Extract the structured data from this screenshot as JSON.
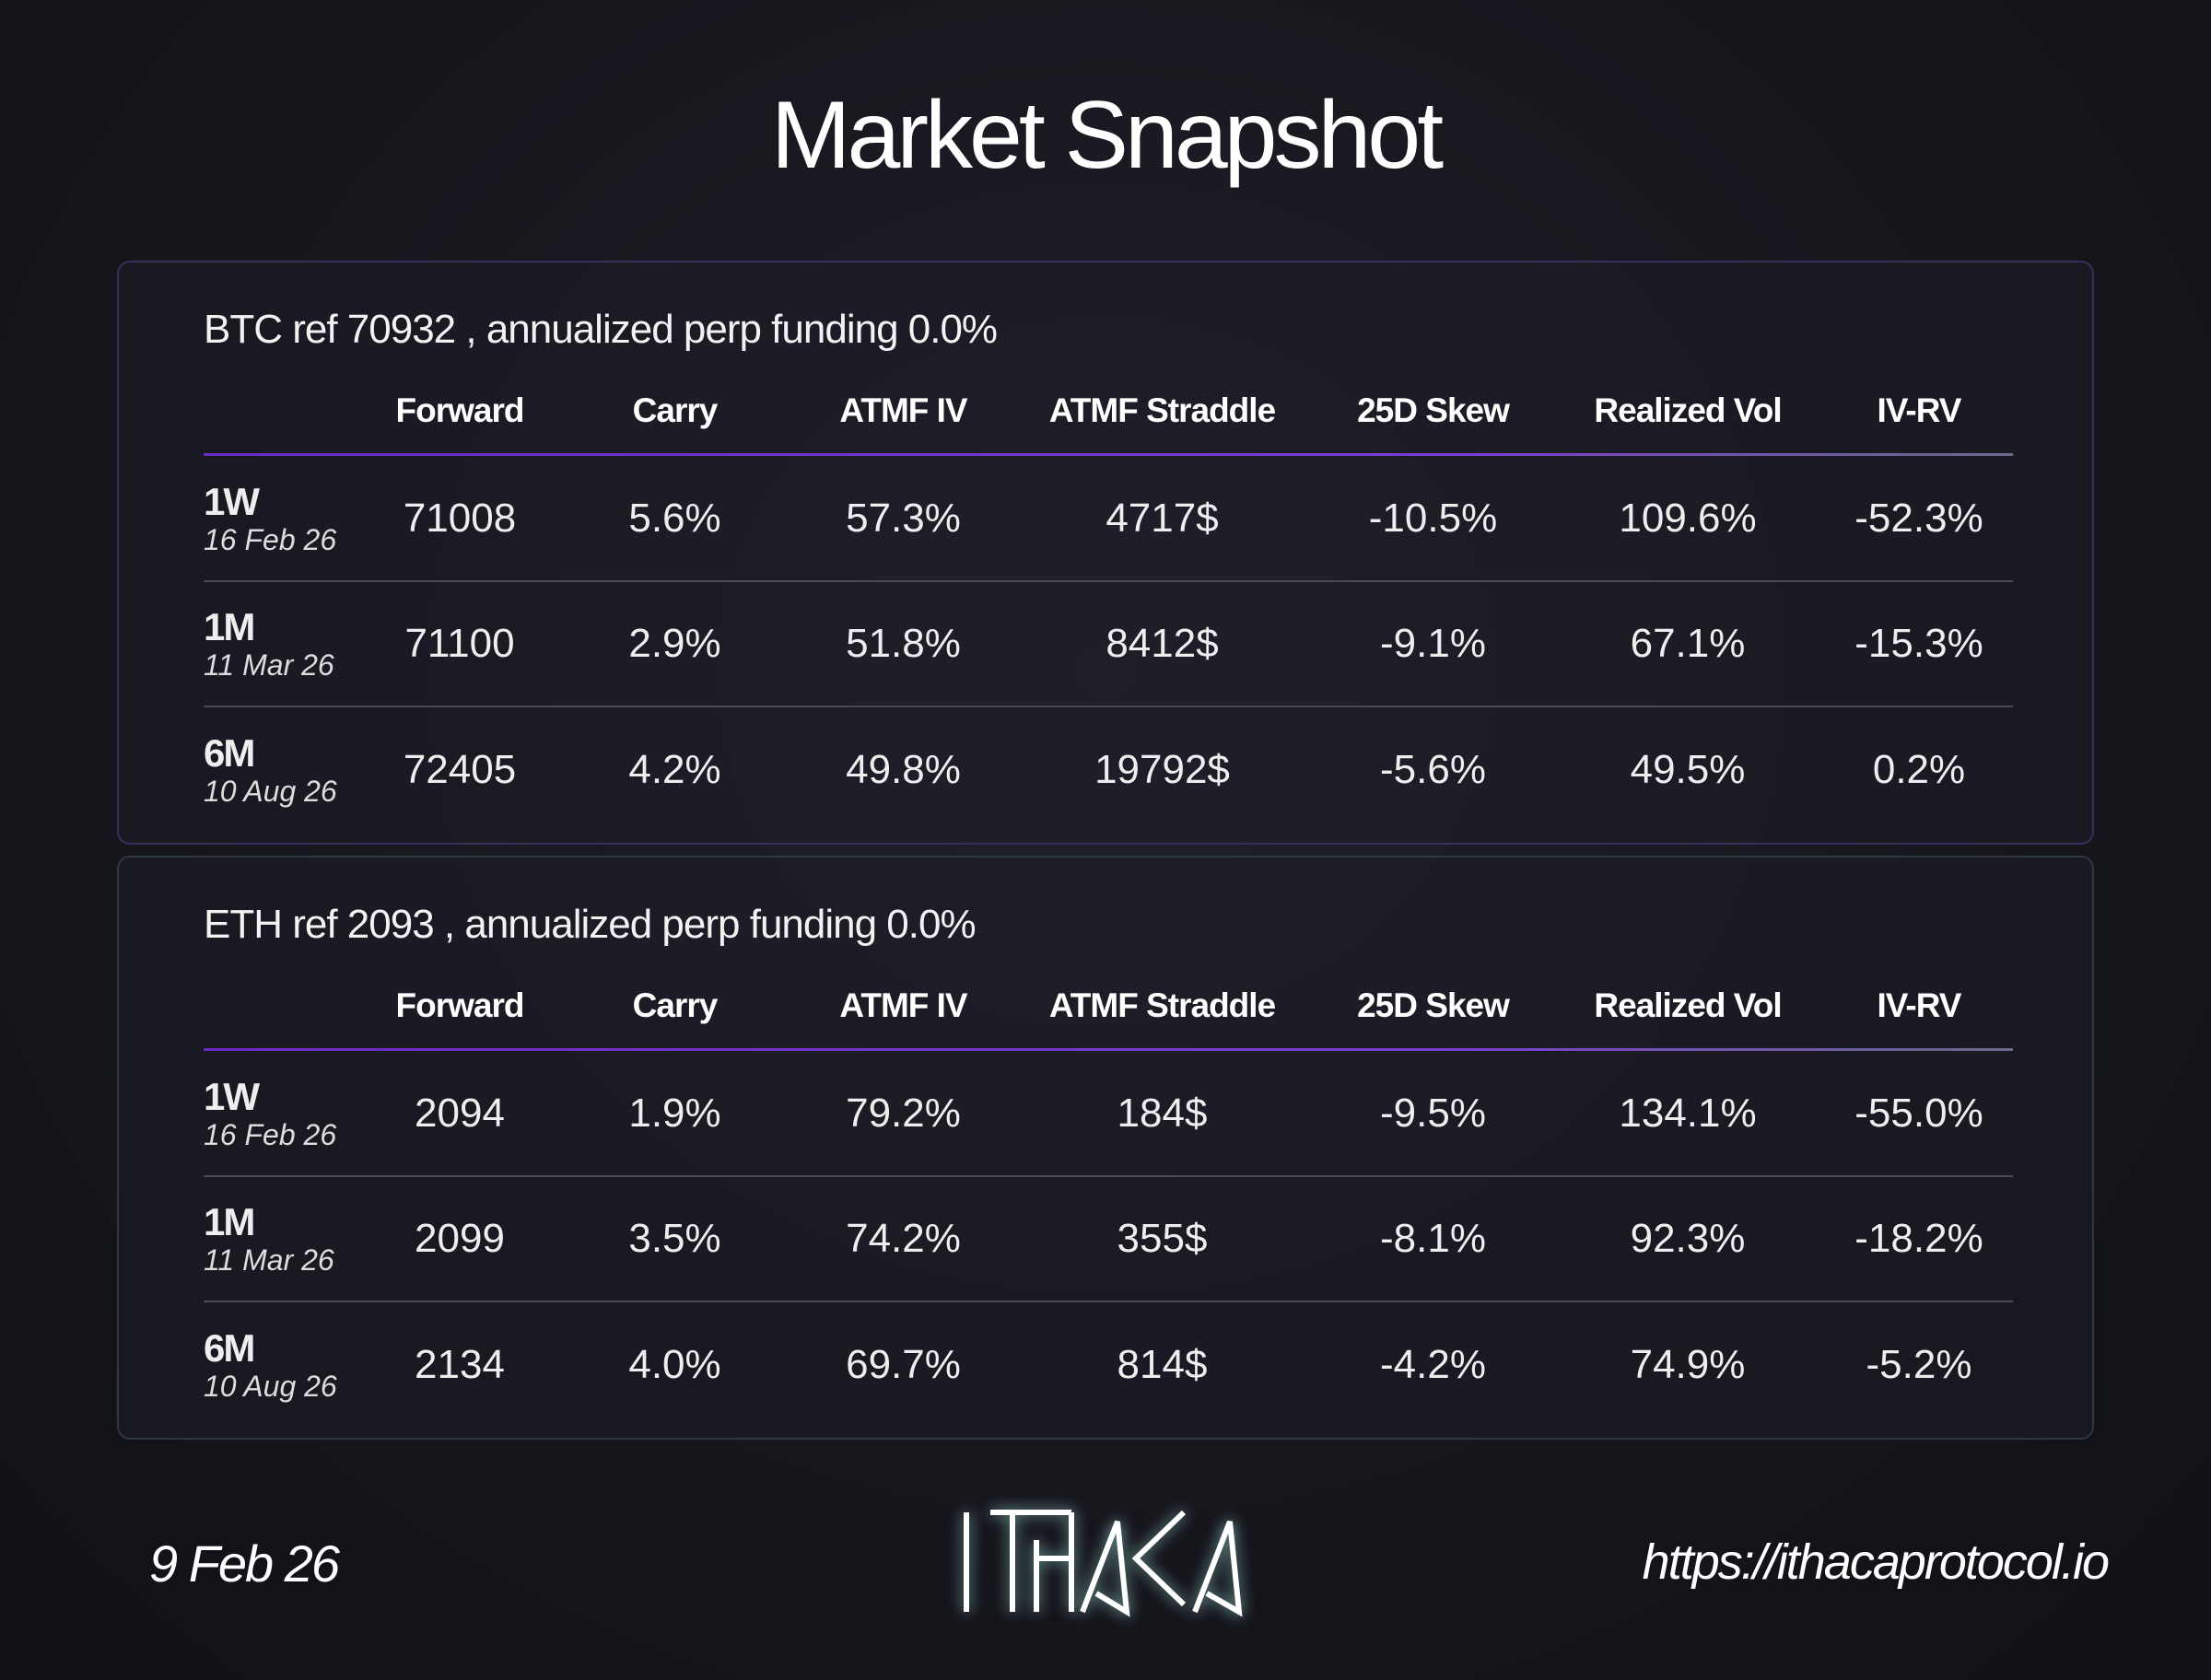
{
  "title": "Market Snapshot",
  "columns": [
    "Forward",
    "Carry",
    "ATMF IV",
    "ATMF Straddle",
    "25D Skew",
    "Realized Vol",
    "IV-RV"
  ],
  "btc": {
    "subtitle": "BTC ref 70932 , annualized perp funding 0.0%",
    "rows": [
      {
        "tenor": "1W",
        "date": "16 Feb 26",
        "v": [
          "71008",
          "5.6%",
          "57.3%",
          "4717$",
          "-10.5%",
          "109.6%",
          "-52.3%"
        ]
      },
      {
        "tenor": "1M",
        "date": "11 Mar 26",
        "v": [
          "71100",
          "2.9%",
          "51.8%",
          "8412$",
          "-9.1%",
          "67.1%",
          "-15.3%"
        ]
      },
      {
        "tenor": "6M",
        "date": "10 Aug 26",
        "v": [
          "72405",
          "4.2%",
          "49.8%",
          "19792$",
          "-5.6%",
          "49.5%",
          "0.2%"
        ]
      }
    ]
  },
  "eth": {
    "subtitle": "ETH ref 2093 , annualized perp funding 0.0%",
    "rows": [
      {
        "tenor": "1W",
        "date": "16 Feb 26",
        "v": [
          "2094",
          "1.9%",
          "79.2%",
          "184$",
          "-9.5%",
          "134.1%",
          "-55.0%"
        ]
      },
      {
        "tenor": "1M",
        "date": "11 Mar 26",
        "v": [
          "2099",
          "3.5%",
          "74.2%",
          "355$",
          "-8.1%",
          "92.3%",
          "-18.2%"
        ]
      },
      {
        "tenor": "6M",
        "date": "10 Aug 26",
        "v": [
          "2134",
          "4.0%",
          "69.7%",
          "814$",
          "-4.2%",
          "74.9%",
          "-5.2%"
        ]
      }
    ]
  },
  "footer": {
    "date": "9 Feb 26",
    "logo": "ITHAKA",
    "url": "https://ithacaprotocol.io"
  }
}
